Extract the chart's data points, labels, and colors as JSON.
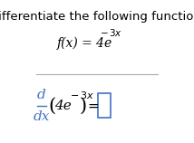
{
  "title": "Differentiate the following function.",
  "func_label": "f(x) = 4e",
  "func_exp": "−3x",
  "deriv_d": "d",
  "deriv_dx": "dx",
  "deriv_inner": "4e",
  "deriv_exp": "−3x",
  "equals": " = ",
  "bg_color": "#ffffff",
  "title_color": "#000000",
  "func_color": "#000000",
  "blue_color": "#4472c4",
  "line_color": "#aaaaaa",
  "title_fontsize": 9.5,
  "func_fontsize": 10,
  "deriv_fontsize": 11
}
